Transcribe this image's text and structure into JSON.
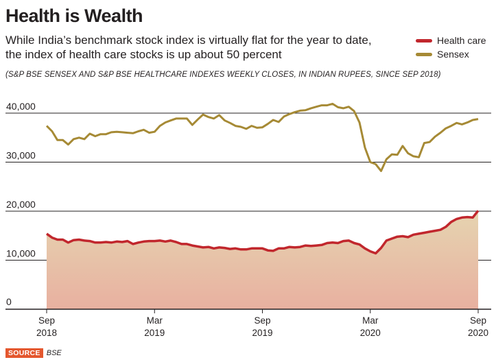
{
  "header": {
    "title": "Health is Wealth",
    "subtitle": "While India’s benchmark stock index is virtually flat for the year to date, the index of health care stocks is up about 50 percent",
    "note": "(S&P BSE SENSEX AND S&P BSE HEALTHCARE INDEXES WEEKLY CLOSES, IN INDIAN RUPEES, SINCE SEP 2018)"
  },
  "legend": {
    "items": [
      {
        "label": "Health care",
        "color": "#c1272d"
      },
      {
        "label": "Sensex",
        "color": "#a68a35"
      }
    ]
  },
  "footer": {
    "source_label": "SOURCE",
    "source_text": "BSE"
  },
  "colors": {
    "healthcare_line": "#c1272d",
    "sensex_line": "#a68a35",
    "area_top": "#e6d4b0",
    "area_bottom": "#e8b0a0",
    "gridline": "#231f20"
  },
  "chart_data": {
    "type": "line",
    "title": "Health is Wealth",
    "xlabel": "",
    "ylabel": "",
    "ylim": [
      0,
      40000
    ],
    "yticks": [
      {
        "value": 0,
        "label": "0"
      },
      {
        "value": 10000,
        "label": "10,000"
      },
      {
        "value": 20000,
        "label": "20,000"
      },
      {
        "value": 30000,
        "label": "30,000"
      },
      {
        "value": 40000,
        "label": "40,000"
      }
    ],
    "xlim": [
      0,
      24
    ],
    "xticks": [
      {
        "month": 0,
        "label1": "Sep",
        "label2": "2018"
      },
      {
        "month": 6,
        "label1": "Mar",
        "label2": "2019"
      },
      {
        "month": 12,
        "label1": "Sep",
        "label2": "2019"
      },
      {
        "month": 18,
        "label1": "Mar",
        "label2": "2020"
      },
      {
        "month": 24,
        "label1": "Sep",
        "label2": "2020"
      }
    ],
    "x_units": "months since Sep 2018",
    "series": [
      {
        "name": "Sensex",
        "x": [
          0,
          0.3,
          0.6,
          0.9,
          1.2,
          1.5,
          1.8,
          2.1,
          2.4,
          2.7,
          3.0,
          3.3,
          3.6,
          3.9,
          4.2,
          4.5,
          4.8,
          5.1,
          5.4,
          5.7,
          6.0,
          6.3,
          6.6,
          6.9,
          7.2,
          7.5,
          7.8,
          8.1,
          8.4,
          8.7,
          9.0,
          9.3,
          9.6,
          9.9,
          10.2,
          10.5,
          10.8,
          11.1,
          11.4,
          11.7,
          12.0,
          12.3,
          12.6,
          12.9,
          13.2,
          13.5,
          13.8,
          14.1,
          14.4,
          14.7,
          15.0,
          15.3,
          15.6,
          15.9,
          16.2,
          16.5,
          16.8,
          17.1,
          17.4,
          17.7,
          18.0,
          18.3,
          18.6,
          18.9,
          19.2,
          19.5,
          19.8,
          20.1,
          20.4,
          20.7,
          21.0,
          21.3,
          21.6,
          21.9,
          22.2,
          22.5,
          22.8,
          23.1,
          23.4,
          23.7,
          24.0
        ],
        "values": [
          37400,
          36300,
          34500,
          34500,
          33600,
          34700,
          35000,
          34700,
          35800,
          35300,
          35700,
          35700,
          36100,
          36200,
          36100,
          36000,
          35900,
          36300,
          36600,
          36000,
          36200,
          37400,
          38100,
          38500,
          38900,
          38900,
          38900,
          37600,
          38700,
          39700,
          39200,
          38900,
          39600,
          38500,
          38000,
          37400,
          37200,
          36800,
          37400,
          37000,
          37100,
          37800,
          38600,
          38200,
          39300,
          39800,
          40200,
          40500,
          40600,
          41000,
          41300,
          41600,
          41600,
          41900,
          41200,
          41000,
          41300,
          40400,
          38100,
          33000,
          30000,
          29600,
          28200,
          30600,
          31600,
          31500,
          33300,
          31800,
          31200,
          31000,
          33900,
          34100,
          35200,
          36000,
          36900,
          37400,
          38000,
          37700,
          38100,
          38600,
          38800
        ]
      },
      {
        "name": "Health care",
        "x": [
          0,
          0.3,
          0.6,
          0.9,
          1.2,
          1.5,
          1.8,
          2.1,
          2.4,
          2.7,
          3.0,
          3.3,
          3.6,
          3.9,
          4.2,
          4.5,
          4.8,
          5.1,
          5.4,
          5.7,
          6.0,
          6.3,
          6.6,
          6.9,
          7.2,
          7.5,
          7.8,
          8.1,
          8.4,
          8.7,
          9.0,
          9.3,
          9.6,
          9.9,
          10.2,
          10.5,
          10.8,
          11.1,
          11.4,
          11.7,
          12.0,
          12.3,
          12.6,
          12.9,
          13.2,
          13.5,
          13.8,
          14.1,
          14.4,
          14.7,
          15.0,
          15.3,
          15.6,
          15.9,
          16.2,
          16.5,
          16.8,
          17.1,
          17.4,
          17.7,
          18.0,
          18.3,
          18.6,
          18.9,
          19.2,
          19.5,
          19.8,
          20.1,
          20.4,
          20.7,
          21.0,
          21.3,
          21.6,
          21.9,
          22.2,
          22.5,
          22.8,
          23.1,
          23.4,
          23.7,
          24.0
        ],
        "values": [
          15400,
          14600,
          14200,
          14200,
          13600,
          14100,
          14200,
          14000,
          13900,
          13600,
          13600,
          13700,
          13600,
          13800,
          13700,
          13900,
          13300,
          13600,
          13800,
          13900,
          13900,
          14000,
          13800,
          14000,
          13700,
          13300,
          13300,
          13000,
          12800,
          12600,
          12700,
          12400,
          12600,
          12500,
          12300,
          12400,
          12200,
          12200,
          12400,
          12400,
          12400,
          12000,
          11900,
          12400,
          12400,
          12700,
          12600,
          12700,
          13000,
          12900,
          13000,
          13100,
          13500,
          13600,
          13500,
          13900,
          14000,
          13500,
          13200,
          12400,
          11800,
          11400,
          12500,
          14000,
          14400,
          14800,
          14900,
          14700,
          15200,
          15400,
          15600,
          15800,
          16000,
          16200,
          16800,
          17800,
          18400,
          18700,
          18800,
          18700,
          20100
        ]
      }
    ]
  }
}
